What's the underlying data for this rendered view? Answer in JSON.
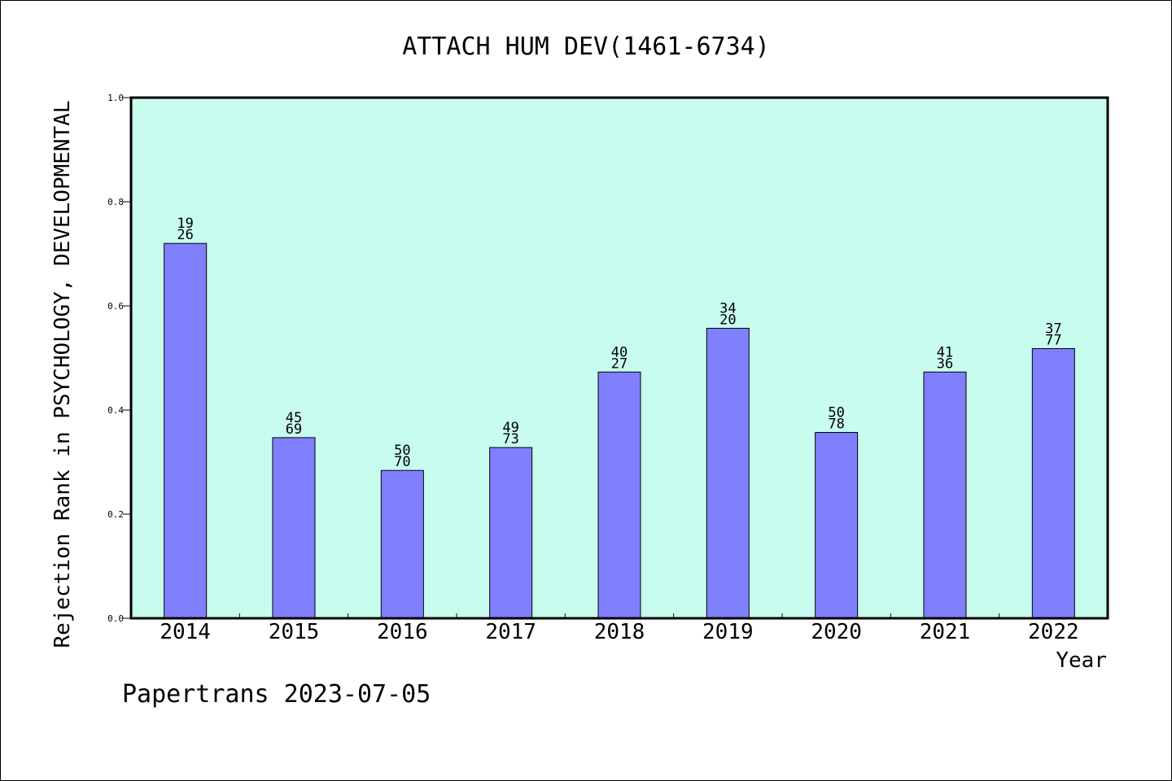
{
  "chart_data": {
    "type": "bar",
    "title": "ATTACH HUM DEV(1461-6734)",
    "xlabel": "Year",
    "ylabel": "Rejection Rank in PSYCHOLOGY, DEVELOPMENTAL",
    "footer": "Papertrans 2023-07-05",
    "categories": [
      "2014",
      "2015",
      "2016",
      "2017",
      "2018",
      "2019",
      "2020",
      "2021",
      "2022"
    ],
    "values": [
      0.72,
      0.347,
      0.284,
      0.328,
      0.473,
      0.557,
      0.357,
      0.473,
      0.518
    ],
    "labels_top": [
      "19",
      "45",
      "50",
      "49",
      "40",
      "34",
      "50",
      "41",
      "37"
    ],
    "labels_bottom": [
      "26",
      "69",
      "70",
      "73",
      "27",
      "20",
      "78",
      "36",
      "77"
    ],
    "ylim": [
      0,
      1.0
    ],
    "yticks": [
      "0.0",
      "0.2",
      "0.4",
      "0.6",
      "0.8",
      "1.0"
    ],
    "grid": false,
    "colors": {
      "plot_background": "#c8fcee",
      "bar_fill": "#8080ff",
      "bar_stroke": "#000000"
    }
  }
}
